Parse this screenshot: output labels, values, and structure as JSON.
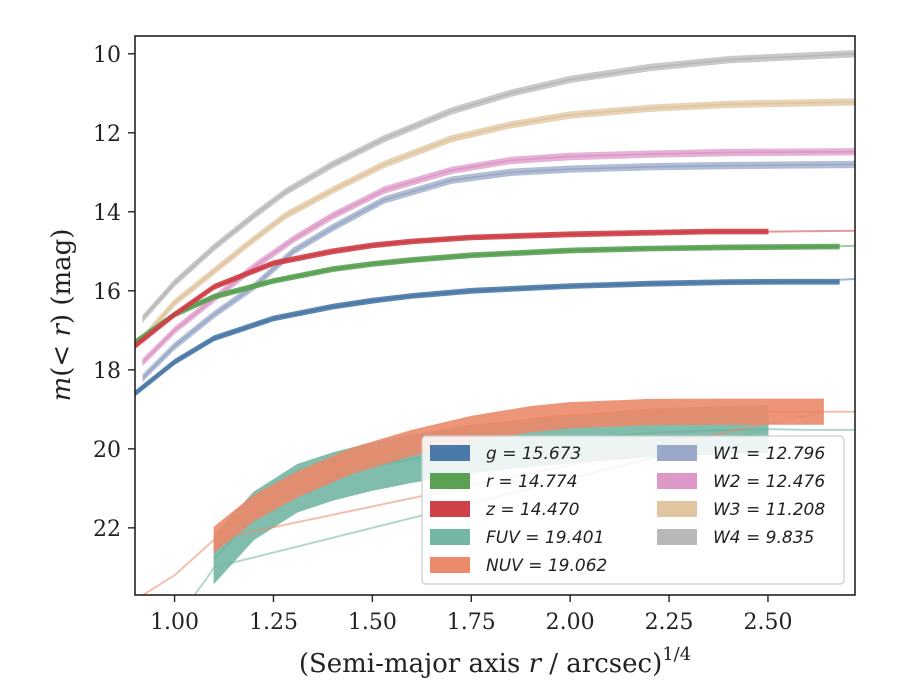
{
  "chart_data": {
    "type": "line",
    "xlabel": "(Semi-major axis r / arcsec)^{1/4}",
    "ylabel": "m(< r) (mag)",
    "xlim": [
      0.9,
      2.72
    ],
    "ylim": [
      23.7,
      9.55
    ],
    "y_inverted": true,
    "x_ticks": [
      "1.00",
      "1.25",
      "1.50",
      "1.75",
      "2.00",
      "2.25",
      "2.50"
    ],
    "y_ticks": [
      "10",
      "12",
      "14",
      "16",
      "18",
      "20",
      "22"
    ],
    "grid": false,
    "legend_placement": "lower right",
    "series": [
      {
        "name": "g = 15.673",
        "color": "#4c7aa8",
        "band_width": 0.06,
        "x": [
          0.9,
          1.0,
          1.1,
          1.25,
          1.4,
          1.5,
          1.6,
          1.75,
          2.0,
          2.2,
          2.4,
          2.55,
          2.68
        ],
        "y": [
          18.6,
          17.8,
          17.2,
          16.7,
          16.4,
          16.25,
          16.13,
          16.0,
          15.88,
          15.82,
          15.78,
          15.77,
          15.77
        ],
        "fit_x": [
          2.68,
          2.72
        ],
        "fit_y": [
          15.72,
          15.7
        ]
      },
      {
        "name": "r = 14.774",
        "color": "#5aa154",
        "band_width": 0.06,
        "x": [
          0.9,
          1.0,
          1.1,
          1.25,
          1.4,
          1.5,
          1.6,
          1.75,
          2.0,
          2.2,
          2.4,
          2.55,
          2.68
        ],
        "y": [
          17.3,
          16.6,
          16.15,
          15.75,
          15.45,
          15.32,
          15.22,
          15.1,
          14.98,
          14.93,
          14.9,
          14.89,
          14.88
        ],
        "fit_x": [
          2.68,
          2.72
        ],
        "fit_y": [
          14.87,
          14.86
        ]
      },
      {
        "name": "z = 14.470",
        "color": "#cf4149",
        "band_width": 0.06,
        "x": [
          0.9,
          1.0,
          1.1,
          1.25,
          1.4,
          1.5,
          1.6,
          1.75,
          2.0,
          2.2,
          2.35,
          2.5
        ],
        "y": [
          17.4,
          16.6,
          15.9,
          15.3,
          15.0,
          14.85,
          14.75,
          14.65,
          14.57,
          14.53,
          14.5,
          14.5
        ],
        "fit_x": [
          2.5,
          2.72
        ],
        "fit_y": [
          14.5,
          14.48
        ]
      },
      {
        "name": "FUV = 19.401",
        "color": "#74b6a4",
        "band_width": 0.6,
        "x": [
          1.1,
          1.2,
          1.31,
          1.4,
          1.5,
          1.6,
          1.75,
          2.0,
          2.2,
          2.4,
          2.5
        ],
        "y": [
          22.8,
          21.7,
          21.0,
          20.7,
          20.45,
          20.25,
          20.0,
          19.75,
          19.6,
          19.52,
          19.5
        ],
        "fit_x": [
          1.05,
          1.08,
          1.1,
          2.5,
          2.6,
          2.72
        ],
        "fit_y": [
          23.7,
          23.3,
          23.0,
          19.5,
          19.52,
          19.52
        ]
      },
      {
        "name": "NUV = 19.062",
        "color": "#ea8a6b",
        "band_width": 0.32,
        "x": [
          1.1,
          1.2,
          1.31,
          1.45,
          1.6,
          1.75,
          1.9,
          2.0,
          2.2,
          2.4,
          2.64
        ],
        "y": [
          22.3,
          21.5,
          20.9,
          20.3,
          19.85,
          19.5,
          19.25,
          19.15,
          19.07,
          19.06,
          19.06
        ],
        "fit_x": [
          0.92,
          1.0,
          1.1,
          2.64,
          2.72
        ],
        "fit_y": [
          23.7,
          23.2,
          22.3,
          19.06,
          19.06
        ]
      },
      {
        "name": "W1 = 12.796",
        "color": "#9aa9c8",
        "band_width": 0.08,
        "x": [
          0.92,
          1.0,
          1.1,
          1.2,
          1.3,
          1.4,
          1.53,
          1.7,
          1.85,
          2.0,
          2.2,
          2.4,
          2.72
        ],
        "y": [
          18.2,
          17.4,
          16.6,
          15.9,
          15.0,
          14.4,
          13.7,
          13.2,
          13.0,
          12.92,
          12.86,
          12.83,
          12.8
        ]
      },
      {
        "name": "W2 = 12.476",
        "color": "#dd98c7",
        "band_width": 0.08,
        "x": [
          0.92,
          1.0,
          1.1,
          1.2,
          1.3,
          1.4,
          1.53,
          1.7,
          1.85,
          2.0,
          2.2,
          2.4,
          2.72
        ],
        "y": [
          17.8,
          17.0,
          16.2,
          15.4,
          14.7,
          14.1,
          13.45,
          12.95,
          12.7,
          12.6,
          12.54,
          12.5,
          12.48
        ]
      },
      {
        "name": "W3 = 11.208",
        "color": "#e0c59f",
        "band_width": 0.08,
        "x": [
          0.92,
          1.0,
          1.1,
          1.2,
          1.28,
          1.4,
          1.53,
          1.7,
          1.85,
          2.0,
          2.2,
          2.4,
          2.72
        ],
        "y": [
          17.2,
          16.3,
          15.5,
          14.7,
          14.1,
          13.45,
          12.8,
          12.15,
          11.8,
          11.55,
          11.38,
          11.28,
          11.22
        ]
      },
      {
        "name": "W4 = 9.835",
        "color": "#b8b8b8",
        "band_width": 0.08,
        "x": [
          0.92,
          1.0,
          1.1,
          1.2,
          1.28,
          1.4,
          1.53,
          1.7,
          1.85,
          2.0,
          2.2,
          2.4,
          2.72
        ],
        "y": [
          16.7,
          15.8,
          14.9,
          14.1,
          13.5,
          12.8,
          12.15,
          11.45,
          11.0,
          10.65,
          10.35,
          10.15,
          10.0
        ]
      }
    ]
  }
}
